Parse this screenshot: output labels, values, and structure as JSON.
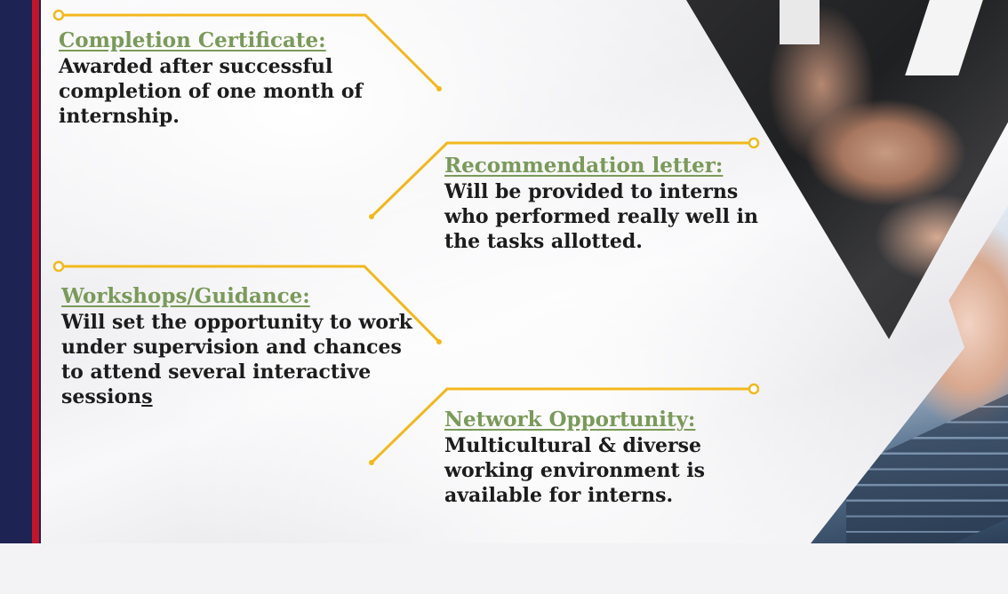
{
  "benefits": [
    {
      "heading": "Completion Certificate:",
      "body": "Awarded after successful completion of one month of internship."
    },
    {
      "heading": "Recommendation letter:",
      "body": "Will be provided to interns who performed really well in the tasks allotted."
    },
    {
      "heading": "Workshops/Guidance: ",
      "body_main": "Will set the opportunity to work under supervision and chances to attend several interactive session",
      "body_tail": "s"
    },
    {
      "heading": "Network Opportunity:",
      "body": "Multicultural & diverse working environment is available for interns."
    }
  ],
  "colors": {
    "heading": "#7a9a5a",
    "connector": "#f2b81d",
    "body_text": "#1c1c1c",
    "bar_navy": "#1d2353",
    "bar_red": "#c2152c"
  },
  "images": {
    "top_right": "team-hands-stacked-photo",
    "bottom_right": "typing-on-keyboard-photo"
  }
}
